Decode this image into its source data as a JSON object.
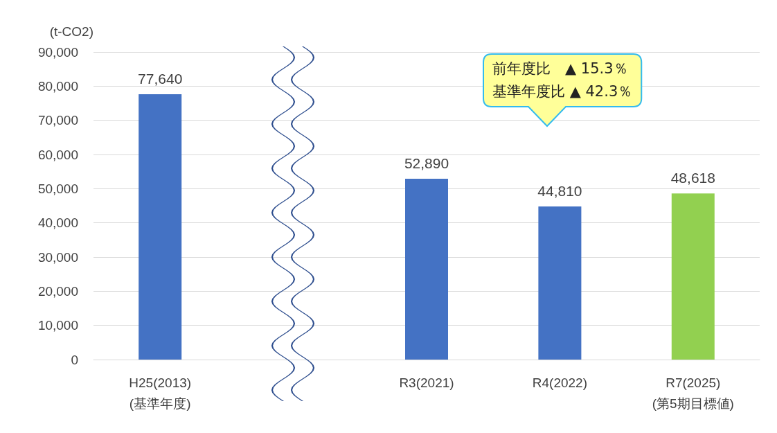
{
  "chart_data": {
    "type": "bar",
    "ylabel": "(t-CO2)",
    "categories": [
      "H25(2013)\n(基準年度)",
      null,
      "R3(2021)",
      "R4(2022)",
      "R7(2025)\n(第5期目標値)"
    ],
    "values": [
      77640,
      null,
      52890,
      44810,
      48618
    ],
    "colors": [
      "#4472c4",
      null,
      "#4472c4",
      "#4472c4",
      "#92d050"
    ],
    "value_labels": [
      "77,640",
      null,
      "52,890",
      "44,810",
      "48,618"
    ],
    "ylim": [
      0,
      90000
    ],
    "yticks": [
      0,
      {
        "value": 10000,
        "label": "10,000"
      },
      {
        "value": 20000,
        "label": "20,000"
      },
      {
        "value": 30000,
        "label": "30,000"
      },
      {
        "value": 40000,
        "label": "40,000"
      },
      {
        "value": 50000,
        "label": "50,000"
      },
      {
        "value": 60000,
        "label": "60,000"
      },
      {
        "value": 70000,
        "label": "70,000"
      },
      {
        "value": 80000,
        "label": "80,000"
      },
      {
        "value": 90000,
        "label": "90,000"
      }
    ],
    "grid": "y",
    "annotations": [
      "前年度比　▲ 15.3％",
      "基準年度比 ▲ 42.3％"
    ]
  }
}
